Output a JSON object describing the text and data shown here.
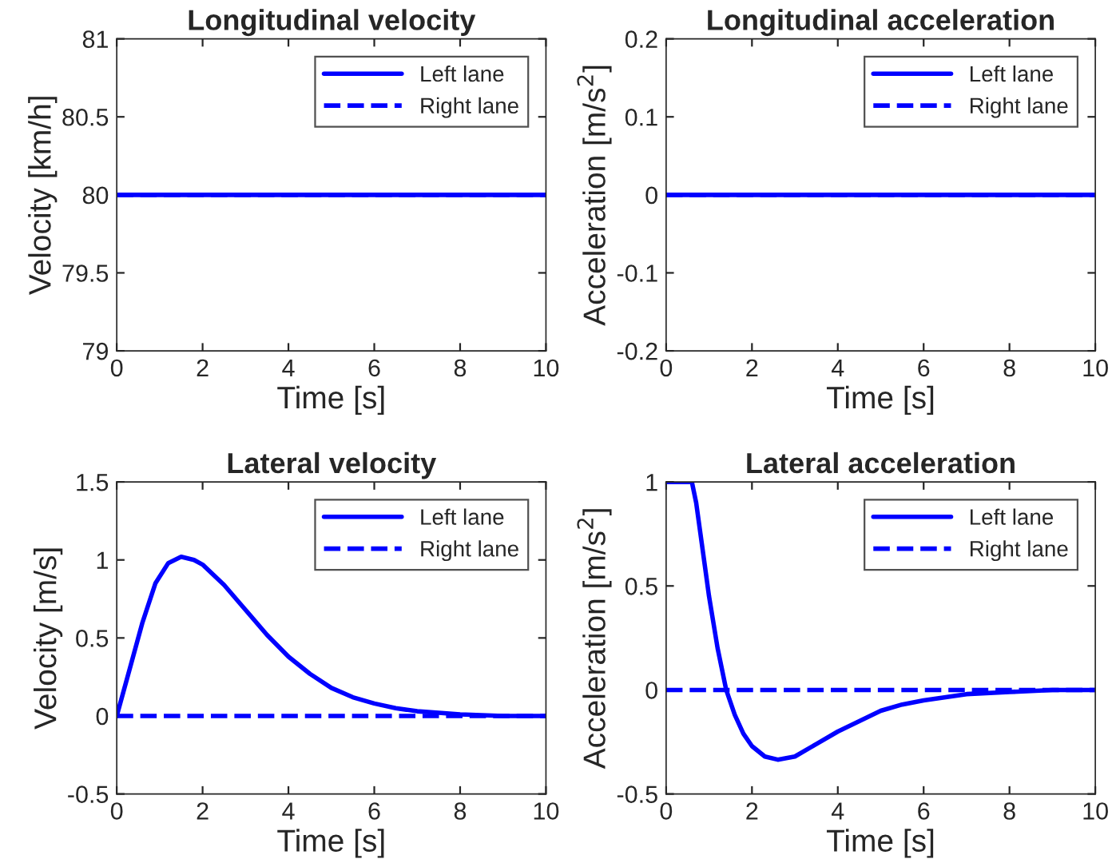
{
  "chart_data": [
    {
      "type": "line",
      "title": "Longitudinal velocity",
      "xlabel": "Time [s]",
      "ylabel": "Velocity [km/h]",
      "xlim": [
        0,
        10
      ],
      "xticks": [
        0,
        2,
        4,
        6,
        8,
        10
      ],
      "ylim": [
        79,
        81
      ],
      "yticks": [
        79,
        79.5,
        80,
        80.5,
        81
      ],
      "legend": "top right",
      "grid": false,
      "series": [
        {
          "name": "Left lane",
          "color": "#0000ff",
          "line_style": "solid",
          "x": [
            0,
            10
          ],
          "values": [
            80,
            80
          ]
        },
        {
          "name": "Right lane",
          "color": "#0000ff",
          "line_style": "dashed",
          "x": [
            0,
            10
          ],
          "values": [
            80,
            80
          ]
        }
      ]
    },
    {
      "type": "line",
      "title": "Longitudinal acceleration",
      "xlabel": "Time [s]",
      "ylabel": "Acceleration [m/s$^{2}$]",
      "xlim": [
        0,
        10
      ],
      "xticks": [
        0,
        2,
        4,
        6,
        8,
        10
      ],
      "ylim": [
        -0.2,
        0.2
      ],
      "yticks": [
        -0.2,
        -0.1,
        0,
        0.1,
        0.2
      ],
      "legend": "top right",
      "grid": false,
      "series": [
        {
          "name": "Left lane",
          "color": "#0000ff",
          "line_style": "solid",
          "x": [
            0,
            10
          ],
          "values": [
            0,
            0
          ]
        },
        {
          "name": "Right lane",
          "color": "#0000ff",
          "line_style": "dashed",
          "x": [
            0,
            10
          ],
          "values": [
            0,
            0
          ]
        }
      ]
    },
    {
      "type": "line",
      "title": "Lateral velocity",
      "xlabel": "Time [s]",
      "ylabel": "Velocity [m/s]",
      "xlim": [
        0,
        10
      ],
      "xticks": [
        0,
        2,
        4,
        6,
        8,
        10
      ],
      "ylim": [
        -0.5,
        1.5
      ],
      "yticks": [
        -0.5,
        0,
        0.5,
        1,
        1.5
      ],
      "legend": "top right",
      "grid": false,
      "series": [
        {
          "name": "Left lane",
          "color": "#0000ff",
          "line_style": "solid",
          "x": [
            0,
            0.3,
            0.6,
            0.9,
            1.2,
            1.5,
            1.8,
            2,
            2.5,
            3,
            3.5,
            4,
            4.5,
            5,
            5.5,
            6,
            6.5,
            7,
            7.5,
            8,
            9,
            10
          ],
          "values": [
            0,
            0.3,
            0.6,
            0.85,
            0.98,
            1.02,
            1.0,
            0.97,
            0.84,
            0.68,
            0.52,
            0.38,
            0.27,
            0.18,
            0.12,
            0.08,
            0.05,
            0.03,
            0.02,
            0.01,
            0,
            0
          ]
        },
        {
          "name": "Right lane",
          "color": "#0000ff",
          "line_style": "dashed",
          "x": [
            0,
            10
          ],
          "values": [
            0,
            0
          ]
        }
      ]
    },
    {
      "type": "line",
      "title": "Lateral acceleration",
      "xlabel": "Time [s]",
      "ylabel": "Acceleration [m/s$^{2}$]",
      "xlim": [
        0,
        10
      ],
      "xticks": [
        0,
        2,
        4,
        6,
        8,
        10
      ],
      "ylim": [
        -0.5,
        1
      ],
      "yticks": [
        -0.5,
        0,
        0.5,
        1
      ],
      "legend": "top right",
      "grid": false,
      "series": [
        {
          "name": "Left lane",
          "color": "#0000ff",
          "line_style": "solid",
          "x": [
            0,
            0.6,
            0.7,
            0.8,
            0.9,
            1.0,
            1.2,
            1.4,
            1.6,
            1.8,
            2.0,
            2.3,
            2.6,
            3,
            3.5,
            4,
            4.5,
            5,
            5.5,
            6,
            7,
            8,
            9,
            10
          ],
          "values": [
            1,
            1,
            0.9,
            0.75,
            0.6,
            0.45,
            0.2,
            0,
            -0.12,
            -0.21,
            -0.27,
            -0.32,
            -0.335,
            -0.32,
            -0.26,
            -0.2,
            -0.15,
            -0.1,
            -0.07,
            -0.05,
            -0.02,
            -0.01,
            0,
            0
          ]
        },
        {
          "name": "Right lane",
          "color": "#0000ff",
          "line_style": "dashed",
          "x": [
            0,
            10
          ],
          "values": [
            0,
            0
          ]
        }
      ]
    }
  ]
}
